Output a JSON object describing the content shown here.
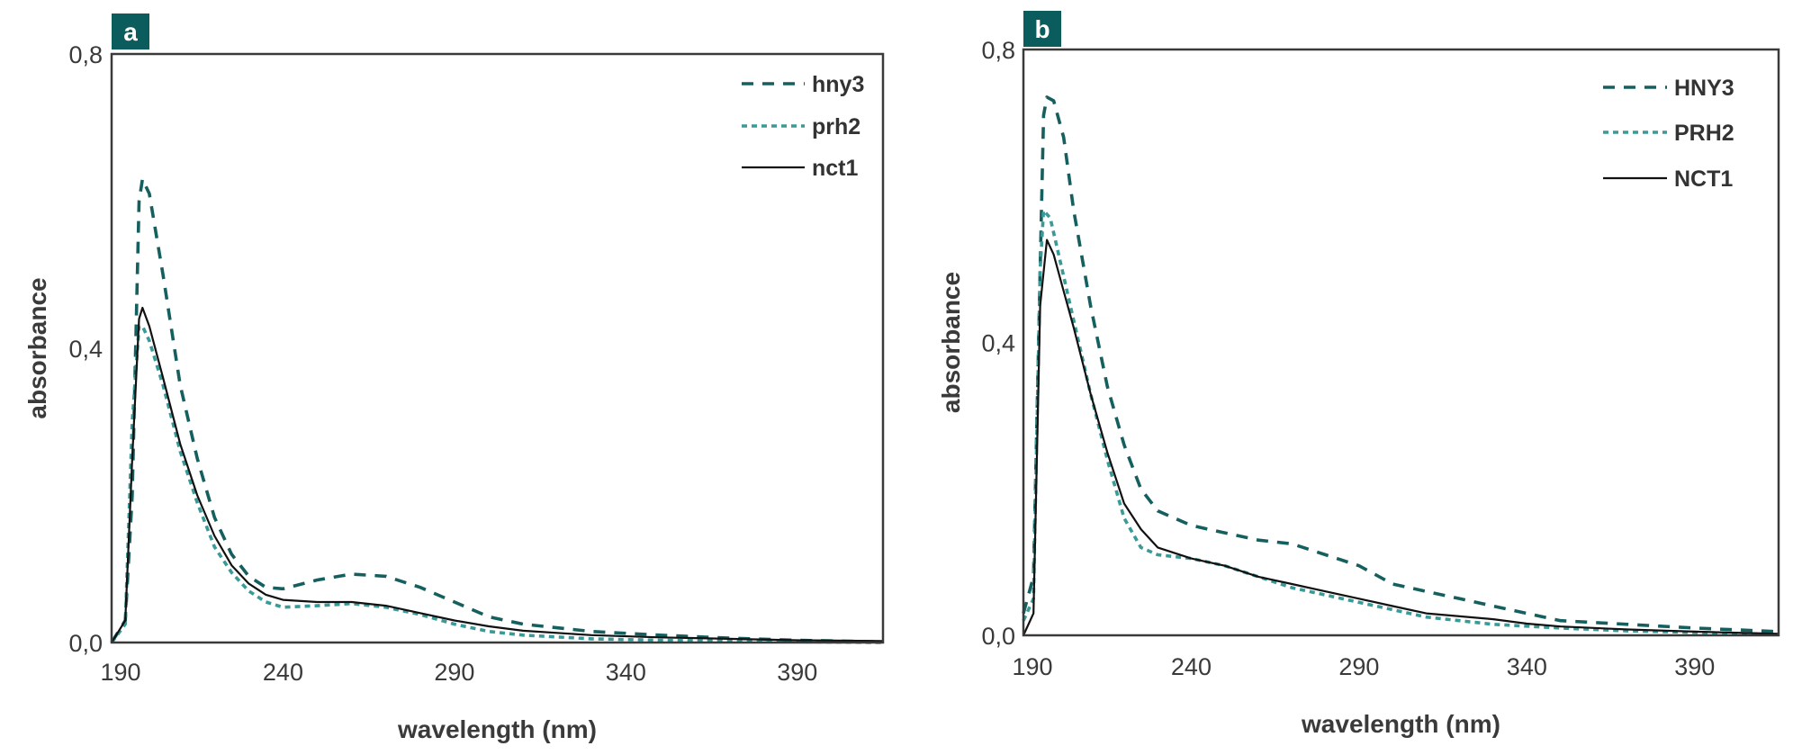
{
  "colors": {
    "hny3": "#15605f",
    "prh2": "#3a9a98",
    "nct1": "#111111",
    "badge": "#0b5c5c",
    "frame": "#3a3a3a"
  },
  "chart_data": [
    {
      "type": "line",
      "panel_label": "a",
      "xlabel": "wavelength (nm)",
      "ylabel": "absorbance",
      "xlim": [
        190,
        415
      ],
      "ylim": [
        0,
        0.8
      ],
      "xticks": [
        190,
        240,
        290,
        340,
        390
      ],
      "xtick_labels": [
        "190",
        "240",
        "290",
        "340",
        "390"
      ],
      "yticks": [
        0,
        0.4,
        0.8
      ],
      "ytick_labels": [
        "0,0",
        "0,4",
        "0,8"
      ],
      "grid": false,
      "legend_position": "top-right",
      "series": [
        {
          "name": "hny3",
          "style": "dashed",
          "x": [
            190,
            194,
            196,
            198,
            199,
            201,
            205,
            210,
            215,
            220,
            225,
            230,
            235,
            240,
            250,
            260,
            270,
            280,
            290,
            300,
            310,
            330,
            350,
            370,
            390,
            415
          ],
          "y": [
            0,
            0.03,
            0.2,
            0.6,
            0.63,
            0.61,
            0.5,
            0.35,
            0.25,
            0.17,
            0.12,
            0.09,
            0.075,
            0.073,
            0.085,
            0.093,
            0.09,
            0.075,
            0.055,
            0.035,
            0.025,
            0.015,
            0.01,
            0.006,
            0.003,
            0.001
          ]
        },
        {
          "name": "prh2",
          "style": "dotted",
          "x": [
            190,
            194,
            196,
            198,
            199,
            201,
            205,
            210,
            215,
            220,
            225,
            230,
            235,
            240,
            250,
            260,
            270,
            280,
            290,
            300,
            310,
            330,
            350,
            390,
            415
          ],
          "y": [
            0,
            0.025,
            0.3,
            0.43,
            0.43,
            0.41,
            0.35,
            0.26,
            0.19,
            0.13,
            0.095,
            0.07,
            0.055,
            0.048,
            0.05,
            0.053,
            0.048,
            0.038,
            0.025,
            0.015,
            0.01,
            0.005,
            0.003,
            0.001,
            0
          ]
        },
        {
          "name": "nct1",
          "style": "solid",
          "x": [
            190,
            194,
            196,
            198,
            199,
            201,
            205,
            210,
            215,
            220,
            225,
            230,
            235,
            240,
            250,
            260,
            270,
            280,
            290,
            300,
            310,
            330,
            350,
            370,
            390,
            415
          ],
          "y": [
            0,
            0.03,
            0.25,
            0.44,
            0.455,
            0.43,
            0.36,
            0.27,
            0.2,
            0.145,
            0.105,
            0.08,
            0.065,
            0.058,
            0.055,
            0.055,
            0.05,
            0.04,
            0.03,
            0.022,
            0.016,
            0.01,
            0.007,
            0.005,
            0.003,
            0.002
          ]
        }
      ]
    },
    {
      "type": "line",
      "panel_label": "b",
      "xlabel": "wavelength (nm)",
      "ylabel": "absorbance",
      "xlim": [
        190,
        415
      ],
      "ylim": [
        0,
        0.8
      ],
      "xticks": [
        190,
        240,
        290,
        340,
        390
      ],
      "xtick_labels": [
        "190",
        "240",
        "290",
        "340",
        "390"
      ],
      "yticks": [
        0,
        0.4,
        0.8
      ],
      "ytick_labels": [
        "0,0",
        "0,4",
        "0,8"
      ],
      "grid": false,
      "legend_position": "top-right",
      "series": [
        {
          "name": "HNY3",
          "style": "dashed",
          "x": [
            190,
            193,
            195,
            196,
            197,
            199,
            202,
            205,
            210,
            215,
            220,
            225,
            230,
            240,
            250,
            260,
            270,
            280,
            290,
            300,
            310,
            320,
            330,
            340,
            350,
            370,
            390,
            415
          ],
          "y": [
            0.03,
            0.08,
            0.5,
            0.71,
            0.735,
            0.73,
            0.68,
            0.58,
            0.45,
            0.34,
            0.26,
            0.2,
            0.17,
            0.15,
            0.14,
            0.13,
            0.125,
            0.11,
            0.095,
            0.07,
            0.06,
            0.05,
            0.04,
            0.03,
            0.02,
            0.015,
            0.01,
            0.005
          ]
        },
        {
          "name": "PRH2",
          "style": "dotted",
          "x": [
            190,
            193,
            195,
            196,
            198,
            200,
            205,
            210,
            215,
            220,
            225,
            230,
            240,
            250,
            260,
            270,
            280,
            290,
            300,
            310,
            330,
            350,
            370,
            390,
            415
          ],
          "y": [
            0.02,
            0.05,
            0.5,
            0.58,
            0.57,
            0.53,
            0.43,
            0.33,
            0.24,
            0.16,
            0.12,
            0.11,
            0.105,
            0.095,
            0.08,
            0.065,
            0.055,
            0.045,
            0.035,
            0.025,
            0.015,
            0.01,
            0.006,
            0.004,
            0.001
          ]
        },
        {
          "name": "NCT1",
          "style": "solid",
          "x": [
            190,
            193,
            195,
            197,
            199,
            202,
            205,
            210,
            215,
            220,
            225,
            230,
            240,
            250,
            260,
            270,
            280,
            290,
            300,
            310,
            330,
            340,
            350,
            370,
            390,
            415
          ],
          "y": [
            0,
            0.03,
            0.45,
            0.54,
            0.52,
            0.47,
            0.42,
            0.33,
            0.25,
            0.18,
            0.145,
            0.12,
            0.105,
            0.095,
            0.08,
            0.07,
            0.06,
            0.05,
            0.04,
            0.03,
            0.022,
            0.016,
            0.012,
            0.008,
            0.005,
            0.002
          ]
        }
      ]
    }
  ]
}
